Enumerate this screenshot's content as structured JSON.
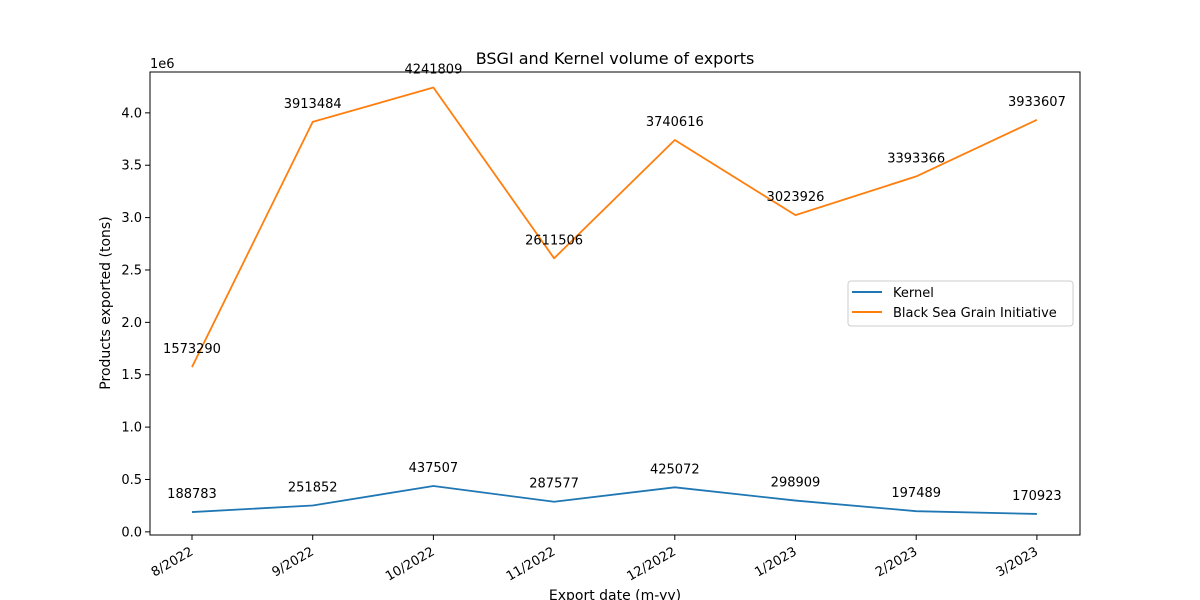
{
  "chart_data": {
    "type": "line",
    "title": "BSGI and Kernel volume of exports",
    "xlabel": "Export date (m-yy)",
    "ylabel": "Products exported (tons)",
    "y_offset_label": "1e6",
    "categories": [
      "8/2022",
      "9/2022",
      "10/2022",
      "11/2022",
      "12/2022",
      "1/2023",
      "2/2023",
      "3/2023"
    ],
    "ylim": [
      0,
      4.4
    ],
    "yticks": [
      "0.0",
      "0.5",
      "1.0",
      "1.5",
      "2.0",
      "2.5",
      "3.0",
      "3.5",
      "4.0"
    ],
    "legend_position": "center-right",
    "grid": false,
    "series": [
      {
        "name": "Kernel",
        "color": "#1f77b4",
        "values": [
          188783,
          251852,
          437507,
          287577,
          425072,
          298909,
          197489,
          170923
        ],
        "labels": [
          "188783",
          "251852",
          "437507",
          "287577",
          "425072",
          "298909",
          "197489",
          "170923"
        ]
      },
      {
        "name": "Black Sea Grain Initiative",
        "color": "#ff7f0e",
        "values": [
          1573290,
          3913484,
          4241809,
          2611506,
          3740616,
          3023926,
          3393366,
          3933607
        ],
        "labels": [
          "1573290",
          "3913484",
          "4241809",
          "2611506",
          "3740616",
          "3023926",
          "3393366",
          "3933607"
        ]
      }
    ]
  }
}
